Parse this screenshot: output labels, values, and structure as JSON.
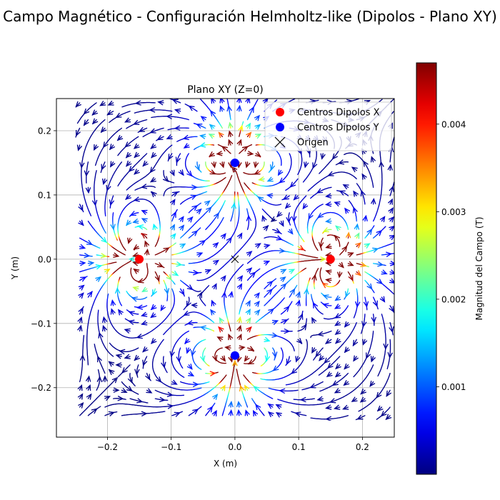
{
  "figure": {
    "suptitle": "Campo Magnético - Configuración Helmholtz-like (Dipolos - Plano XY)"
  },
  "colors": {
    "background": "#ffffff",
    "grid": "#b0b0b0",
    "legend_x_marker": "#ff0000",
    "legend_y_marker": "#0000ff",
    "origin_marker": "#000000",
    "colormap": [
      "#00007f",
      "#0000ff",
      "#007fff",
      "#00ffff",
      "#7fff7f",
      "#ffff00",
      "#ff7f00",
      "#ff0000",
      "#7f0000"
    ]
  },
  "chart_data": {
    "type": "scatter",
    "subtype": "streamplot",
    "title": "Plano XY (Z=0)",
    "xlabel": "X (m)",
    "ylabel": "Y (m)",
    "xlim": [
      -0.28,
      0.25
    ],
    "ylim": [
      -0.277,
      0.25
    ],
    "xticks": [
      -0.2,
      -0.1,
      0.0,
      0.1,
      0.2
    ],
    "yticks": [
      -0.2,
      -0.1,
      0.0,
      0.1,
      0.2
    ],
    "xtick_labels": [
      "−0.2",
      "−0.1",
      "0.0",
      "0.1",
      "0.2"
    ],
    "ytick_labels": [
      "−0.2",
      "−0.1",
      "0.0",
      "0.1",
      "0.2"
    ],
    "grid": true,
    "legend_position": "top-right",
    "stream_domain": {
      "x": [
        -0.25,
        0.25
      ],
      "y": [
        -0.25,
        0.25
      ]
    },
    "series": [
      {
        "name": "Centros Dipolos X",
        "marker": "circle",
        "color": "#ff0000",
        "points": [
          [
            -0.15,
            0.0
          ],
          [
            0.15,
            0.0
          ]
        ],
        "moment": [
          1,
          0
        ]
      },
      {
        "name": "Centros Dipolos Y",
        "marker": "circle",
        "color": "#0000ff",
        "points": [
          [
            0.0,
            0.15
          ],
          [
            0.0,
            -0.15
          ]
        ],
        "moment": [
          0,
          1
        ]
      },
      {
        "name": "Origen",
        "marker": "x",
        "color": "#000000",
        "points": [
          [
            0.0,
            0.0
          ]
        ]
      }
    ],
    "colorbar": {
      "label": "Magnitud del Campo (T)",
      "range": [
        0.0,
        0.0047
      ],
      "ticks": [
        0.001,
        0.002,
        0.003,
        0.004
      ],
      "tick_labels": [
        "0.001",
        "0.002",
        "0.003",
        "0.004"
      ],
      "colormap": "jet"
    }
  }
}
